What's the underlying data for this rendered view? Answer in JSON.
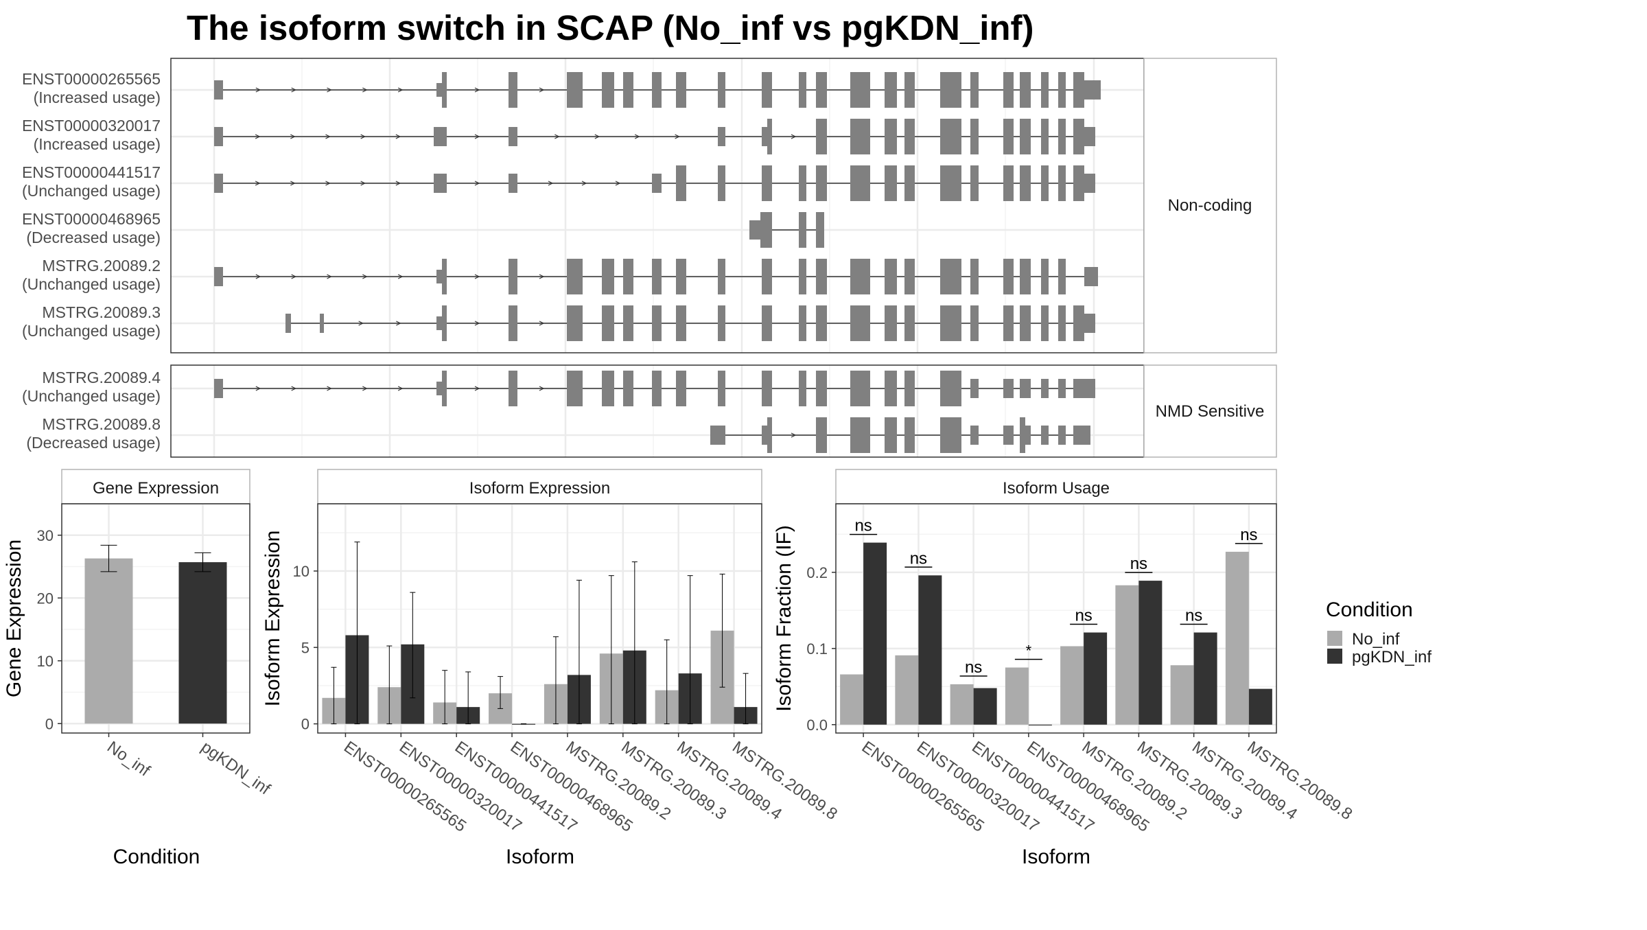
{
  "title": "The isoform switch in SCAP (No_inf vs pgKDN_inf)",
  "colors": {
    "no_inf": "#ababab",
    "pgkdn_inf": "#333333",
    "exon": "#808080",
    "grid": "#ebebeb",
    "panel_border": "#333333",
    "strip_border": "#b3b3b3"
  },
  "structure_panel": {
    "facets": [
      {
        "label": "Non-coding",
        "transcripts": [
          {
            "name": "ENST00000265565",
            "usage": "(Increased usage)"
          },
          {
            "name": "ENST00000320017",
            "usage": "(Increased usage)"
          },
          {
            "name": "ENST00000441517",
            "usage": "(Unchanged usage)"
          },
          {
            "name": "ENST00000468965",
            "usage": "(Decreased usage)"
          },
          {
            "name": "MSTRG.20089.2",
            "usage": "(Unchanged usage)"
          },
          {
            "name": "MSTRG.20089.3",
            "usage": "(Unchanged usage)"
          }
        ]
      },
      {
        "label": "NMD Sensitive",
        "transcripts": [
          {
            "name": "MSTRG.20089.4",
            "usage": "(Unchanged usage)"
          },
          {
            "name": "MSTRG.20089.8",
            "usage": "(Decreased usage)"
          }
        ]
      }
    ]
  },
  "chart_data": [
    {
      "type": "bar",
      "panel": "Gene Expression",
      "xlabel": "Condition",
      "ylabel": "Gene Expression",
      "categories": [
        "No_inf",
        "pgKDN_inf"
      ],
      "values": [
        26.3,
        25.7
      ],
      "err_low": [
        24.2,
        24.2
      ],
      "err_high": [
        28.4,
        27.2
      ],
      "ylim": [
        -1.5,
        35
      ],
      "yticks": [
        0,
        10,
        20,
        30
      ]
    },
    {
      "type": "bar",
      "panel": "Isoform Expression",
      "xlabel": "Isoform",
      "ylabel": "Isoform Expression",
      "categories": [
        "ENST00000265565",
        "ENST00000320017",
        "ENST00000441517",
        "ENST00000468965",
        "MSTRG.20089.2",
        "MSTRG.20089.3",
        "MSTRG.20089.4",
        "MSTRG.20089.8"
      ],
      "series": [
        {
          "name": "No_inf",
          "values": [
            1.7,
            2.4,
            1.4,
            2.0,
            2.6,
            4.6,
            2.2,
            6.1
          ],
          "err_low": [
            0,
            0,
            0,
            1.0,
            0,
            0,
            0,
            2.4
          ],
          "err_high": [
            3.7,
            5.1,
            3.5,
            3.1,
            5.7,
            9.7,
            5.5,
            9.8
          ]
        },
        {
          "name": "pgKDN_inf",
          "values": [
            5.8,
            5.2,
            1.1,
            0.0,
            3.2,
            4.8,
            3.3,
            1.1
          ],
          "err_low": [
            0,
            1.7,
            0,
            0,
            0,
            0,
            0,
            0
          ],
          "err_high": [
            11.9,
            8.6,
            3.4,
            0,
            9.4,
            10.6,
            9.7,
            3.3
          ]
        }
      ],
      "ylim": [
        -0.6,
        14.4
      ],
      "yticks": [
        0,
        5,
        10
      ]
    },
    {
      "type": "bar",
      "panel": "Isoform Usage",
      "xlabel": "Isoform",
      "ylabel": "Isoform Fraction (IF)",
      "categories": [
        "ENST00000265565",
        "ENST00000320017",
        "ENST00000441517",
        "ENST00000468965",
        "MSTRG.20089.2",
        "MSTRG.20089.3",
        "MSTRG.20089.4",
        "MSTRG.20089.8"
      ],
      "series": [
        {
          "name": "No_inf",
          "values": [
            0.066,
            0.091,
            0.053,
            0.075,
            0.103,
            0.183,
            0.078,
            0.227
          ]
        },
        {
          "name": "pgKDN_inf",
          "values": [
            0.239,
            0.196,
            0.048,
            0.0,
            0.121,
            0.189,
            0.121,
            0.047
          ]
        }
      ],
      "significance": [
        "ns",
        "ns",
        "ns",
        "*",
        "ns",
        "ns",
        "ns",
        "ns"
      ],
      "ylim": [
        -0.011,
        0.29
      ],
      "yticks": [
        0.0,
        0.1,
        0.2
      ],
      "ytick_labels": [
        "0.0",
        "0.1",
        "0.2"
      ]
    }
  ],
  "legend": {
    "title": "Condition",
    "entries": [
      "No_inf",
      "pgKDN_inf"
    ]
  }
}
